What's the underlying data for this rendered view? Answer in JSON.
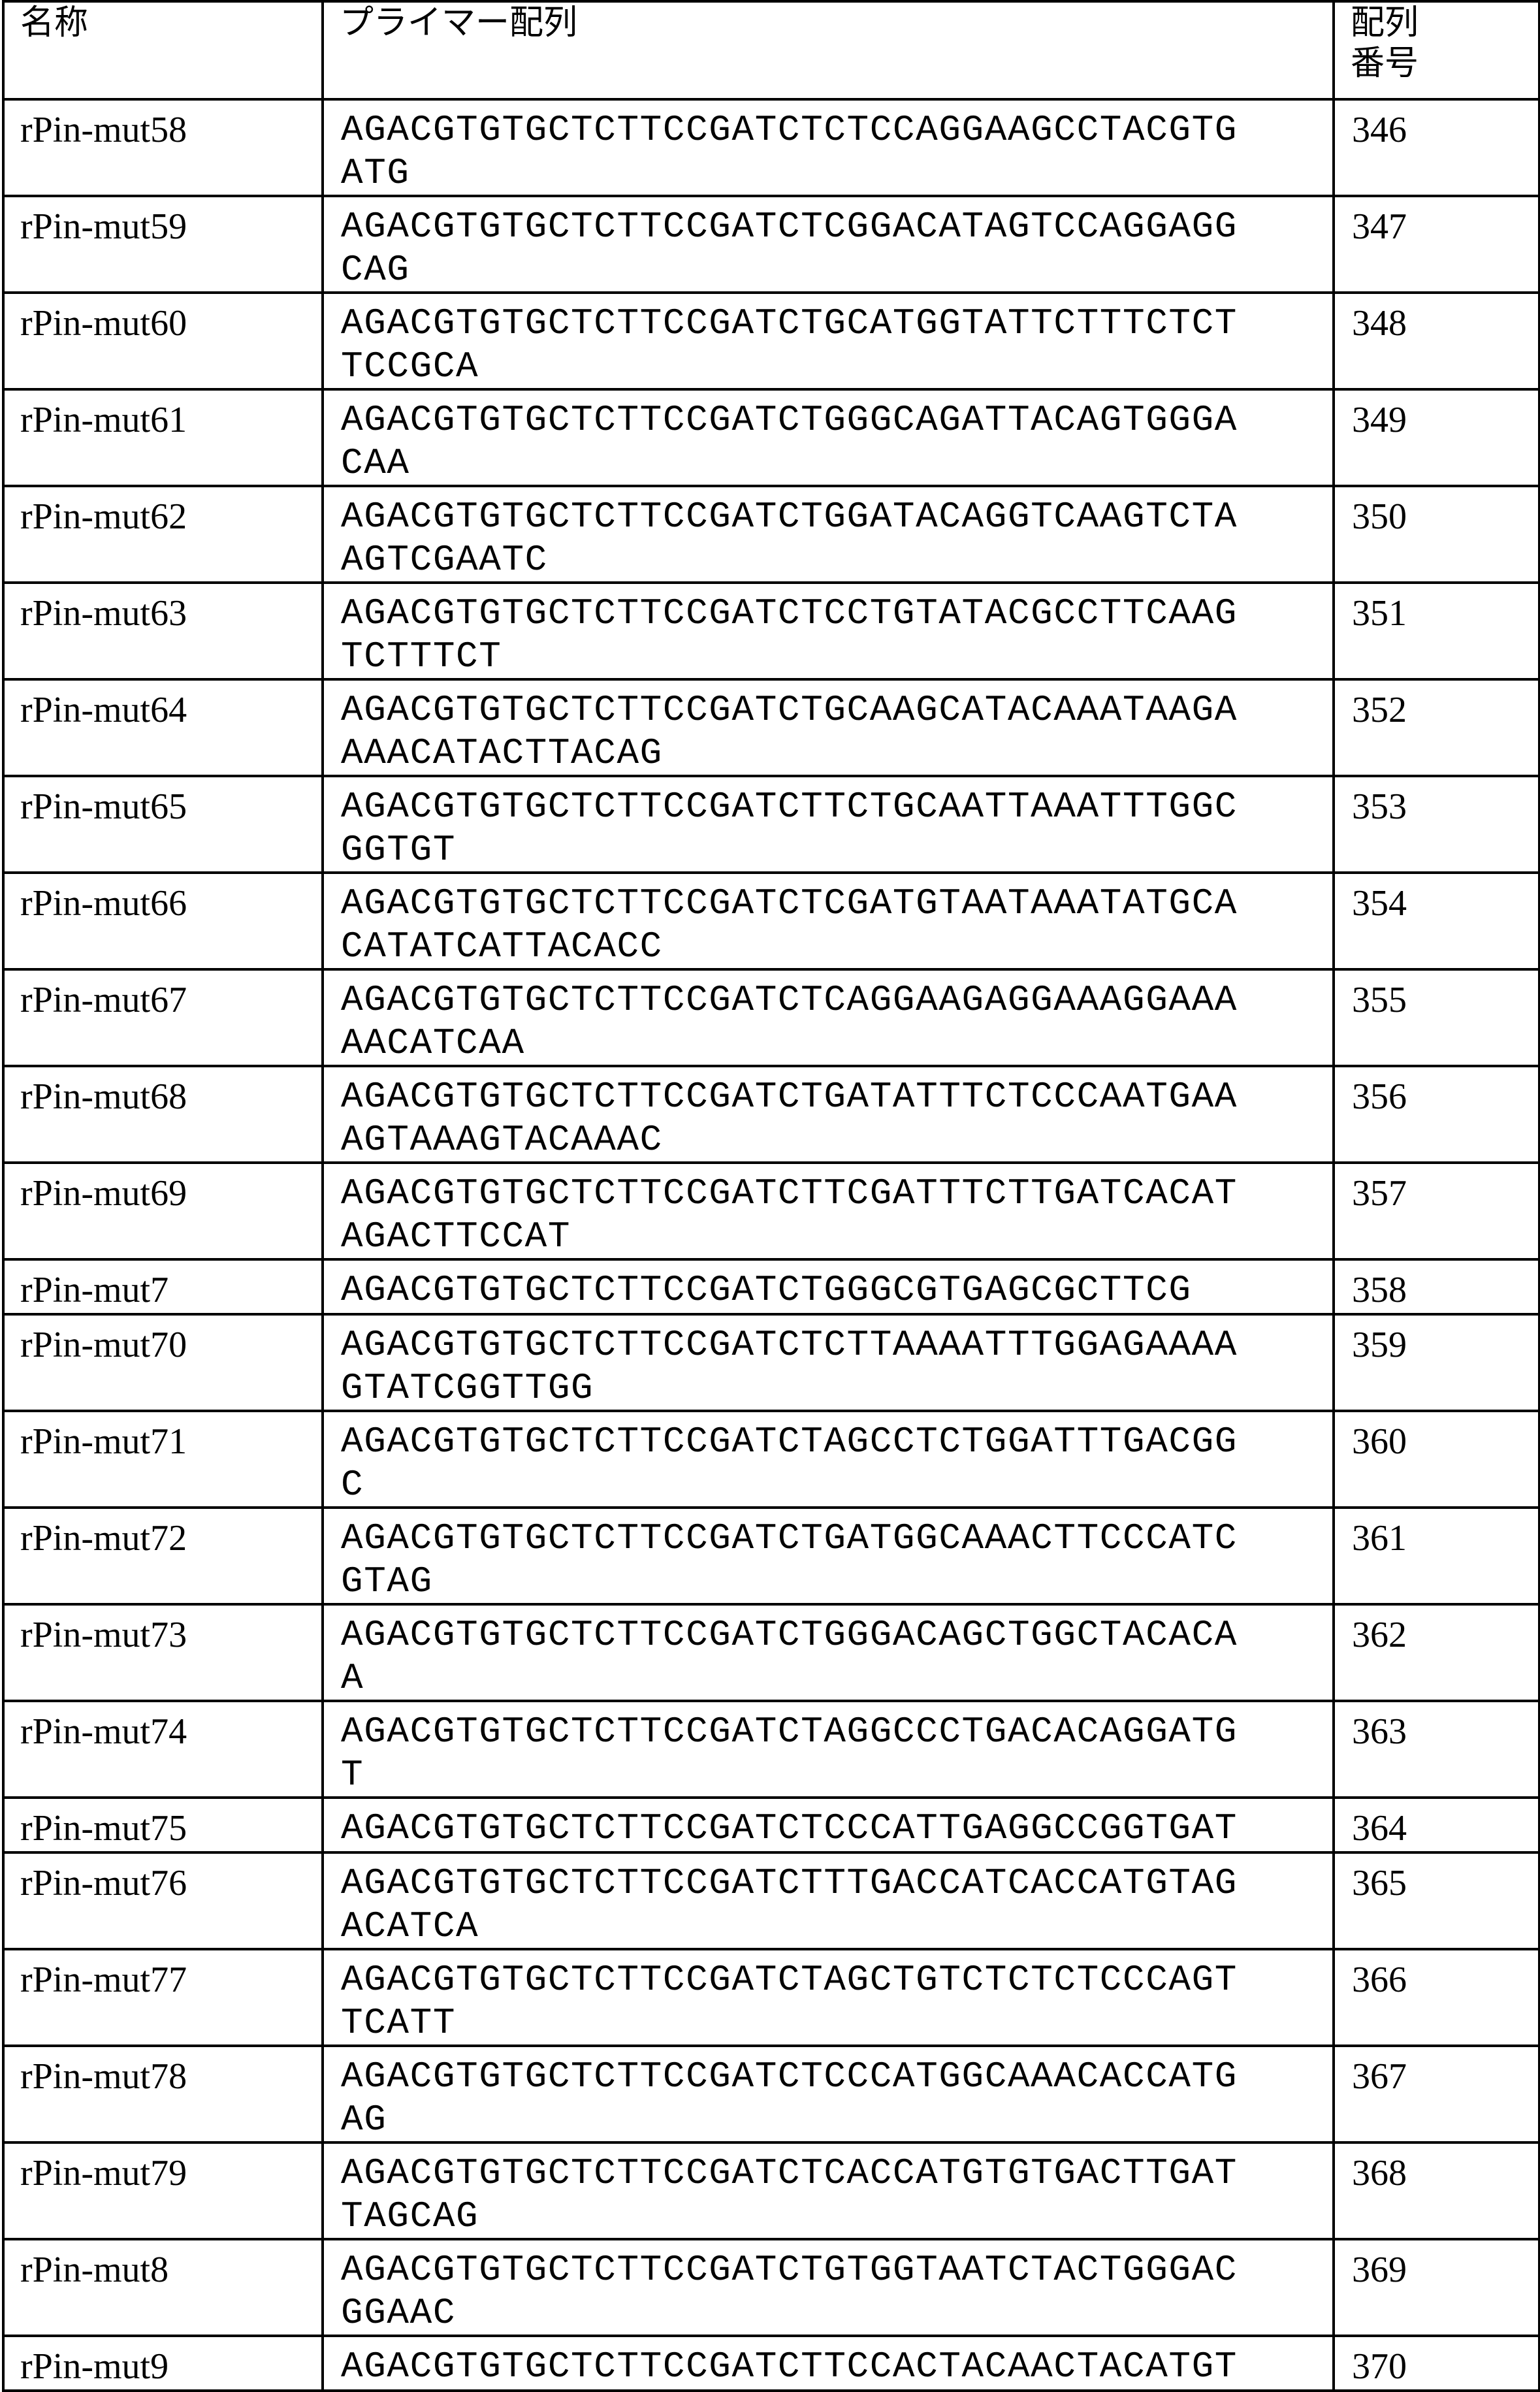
{
  "header": {
    "name": "名称",
    "sequence": "プライマー配列",
    "seq_no_line1": "配列",
    "seq_no_line2": "番号"
  },
  "rows": [
    {
      "name": "rPin-mut58",
      "seq": [
        "AGACGTGTGCTCTTCCGATCTCTCCAGGAAGCCTACGTG",
        "ATG"
      ],
      "no": "346"
    },
    {
      "name": "rPin-mut59",
      "seq": [
        "AGACGTGTGCTCTTCCGATCTCGGACATAGTCCAGGAGG",
        "CAG"
      ],
      "no": "347"
    },
    {
      "name": "rPin-mut60",
      "seq": [
        "AGACGTGTGCTCTTCCGATCTGCATGGTATTCTTTCTCT",
        "TCCGCA"
      ],
      "no": "348"
    },
    {
      "name": "rPin-mut61",
      "seq": [
        "AGACGTGTGCTCTTCCGATCTGGGCAGATTACAGTGGGA",
        "CAA"
      ],
      "no": "349"
    },
    {
      "name": "rPin-mut62",
      "seq": [
        "AGACGTGTGCTCTTCCGATCTGGATACAGGTCAAGTCTA",
        "AGTCGAATC"
      ],
      "no": "350"
    },
    {
      "name": "rPin-mut63",
      "seq": [
        "AGACGTGTGCTCTTCCGATCTCCTGTATACGCCTTCAAG",
        "TCTTTCT"
      ],
      "no": "351"
    },
    {
      "name": "rPin-mut64",
      "seq": [
        "AGACGTGTGCTCTTCCGATCTGCAAGCATACAAATAAGA",
        "AAACATACTTACAG"
      ],
      "no": "352"
    },
    {
      "name": "rPin-mut65",
      "seq": [
        "AGACGTGTGCTCTTCCGATCTTCTGCAATTAAATTTGGC",
        "GGTGT"
      ],
      "no": "353"
    },
    {
      "name": "rPin-mut66",
      "seq": [
        "AGACGTGTGCTCTTCCGATCTCGATGTAATAAATATGCA",
        "CATATCATTACACC"
      ],
      "no": "354"
    },
    {
      "name": "rPin-mut67",
      "seq": [
        "AGACGTGTGCTCTTCCGATCTCAGGAAGAGGAAAGGAAA",
        "AACATCAA"
      ],
      "no": "355"
    },
    {
      "name": "rPin-mut68",
      "seq": [
        "AGACGTGTGCTCTTCCGATCTGATATTTCTCCCAATGAA",
        "AGTAAAGTACAAAC"
      ],
      "no": "356"
    },
    {
      "name": "rPin-mut69",
      "seq": [
        "AGACGTGTGCTCTTCCGATCTTCGATTTCTTGATCACAT",
        "AGACTTCCAT"
      ],
      "no": "357"
    },
    {
      "name": "rPin-mut7",
      "seq": [
        "AGACGTGTGCTCTTCCGATCTGGGCGTGAGCGCTTCG"
      ],
      "no": "358"
    },
    {
      "name": "rPin-mut70",
      "seq": [
        "AGACGTGTGCTCTTCCGATCTCTTAAAATTTGGAGAAAA",
        "GTATCGGTTGG"
      ],
      "no": "359"
    },
    {
      "name": "rPin-mut71",
      "seq": [
        "AGACGTGTGCTCTTCCGATCTAGCCTCTGGATTTGACGG",
        "C"
      ],
      "no": "360"
    },
    {
      "name": "rPin-mut72",
      "seq": [
        "AGACGTGTGCTCTTCCGATCTGATGGCAAACTTCCCATC",
        "GTAG"
      ],
      "no": "361"
    },
    {
      "name": "rPin-mut73",
      "seq": [
        "AGACGTGTGCTCTTCCGATCTGGGACAGCTGGCTACACA",
        "A"
      ],
      "no": "362"
    },
    {
      "name": "rPin-mut74",
      "seq": [
        "AGACGTGTGCTCTTCCGATCTAGGCCCTGACACAGGATG",
        "T"
      ],
      "no": "363"
    },
    {
      "name": "rPin-mut75",
      "seq": [
        "AGACGTGTGCTCTTCCGATCTCCCATTGAGGCCGGTGAT"
      ],
      "no": "364"
    },
    {
      "name": "rPin-mut76",
      "seq": [
        "AGACGTGTGCTCTTCCGATCTTTGACCATCACCATGTAG",
        "ACATCA"
      ],
      "no": "365"
    },
    {
      "name": "rPin-mut77",
      "seq": [
        "AGACGTGTGCTCTTCCGATCTAGCTGTCTCTCTCCCAGT",
        "TCATT"
      ],
      "no": "366"
    },
    {
      "name": "rPin-mut78",
      "seq": [
        "AGACGTGTGCTCTTCCGATCTCCCATGGCAAACACCATG",
        "AG"
      ],
      "no": "367"
    },
    {
      "name": "rPin-mut79",
      "seq": [
        "AGACGTGTGCTCTTCCGATCTCACCATGTGTGACTTGAT",
        "TAGCAG"
      ],
      "no": "368"
    },
    {
      "name": "rPin-mut8",
      "seq": [
        "AGACGTGTGCTCTTCCGATCTGTGGTAATCTACTGGGAC",
        "GGAAC"
      ],
      "no": "369"
    },
    {
      "name": "rPin-mut9",
      "seq": [
        "AGACGTGTGCTCTTCCGATCTTCCACTACAACTACATGT"
      ],
      "no": "370"
    }
  ]
}
